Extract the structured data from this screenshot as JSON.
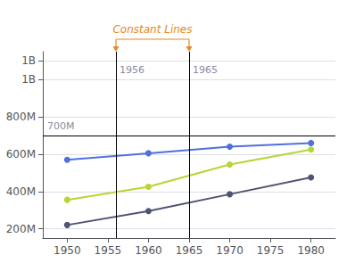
{
  "chart_data": {
    "type": "line",
    "xlim": [
      1947,
      1983
    ],
    "xticks": [
      1950,
      1955,
      1960,
      1965,
      1970,
      1975,
      1980
    ],
    "ylim": [
      150000000,
      1150000000
    ],
    "yticks": [
      {
        "value": 200000000,
        "label": "200M"
      },
      {
        "value": 400000000,
        "label": "400M"
      },
      {
        "value": 600000000,
        "label": "600M"
      },
      {
        "value": 800000000,
        "label": "800M"
      },
      {
        "value": 1000000000,
        "label": "1B"
      },
      {
        "value": 1100000000,
        "label": "1B"
      }
    ],
    "grid": true,
    "marker": "circle",
    "series": [
      {
        "x": [
          1950,
          1960,
          1970,
          1980
        ],
        "values": [
          570000000,
          605000000,
          640000000,
          660000000
        ]
      },
      {
        "x": [
          1950,
          1960,
          1970,
          1980
        ],
        "values": [
          355000000,
          425000000,
          545000000,
          625000000
        ]
      },
      {
        "x": [
          1950,
          1960,
          1970,
          1980
        ],
        "values": [
          220000000,
          295000000,
          385000000,
          475000000
        ]
      }
    ],
    "constant_lines": [
      {
        "axis": "x",
        "value": 1956,
        "label": "1956"
      },
      {
        "axis": "x",
        "value": 1965,
        "label": "1965"
      },
      {
        "axis": "y",
        "value": 700000000,
        "label": "700M"
      }
    ],
    "annotations": [
      {
        "text": "Constant Lines",
        "color": "#e88820"
      }
    ]
  }
}
